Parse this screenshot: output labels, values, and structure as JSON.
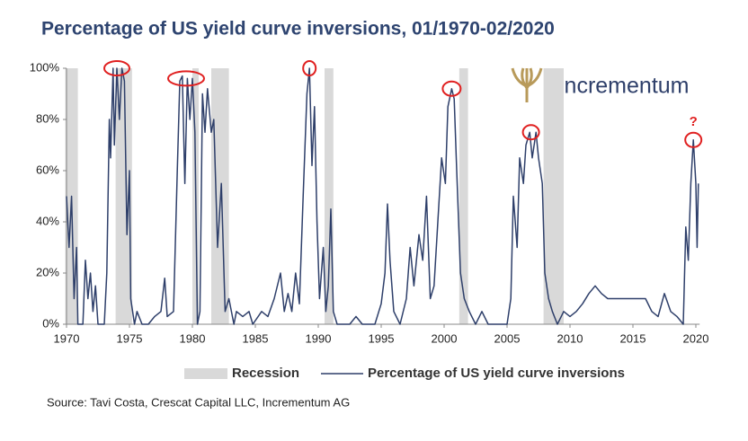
{
  "chart_data": {
    "type": "line",
    "title": "Percentage of US yield curve inversions, 01/1970-02/2020",
    "source": "Source: Tavi Costa, Crescat Capital LLC, Incrementum AG",
    "logo_text": "incrementum",
    "xlim": [
      1970,
      2020.3
    ],
    "xticks": [
      1970,
      1975,
      1980,
      1985,
      1990,
      1995,
      2000,
      2005,
      2010,
      2015,
      2020
    ],
    "ylim": [
      0,
      100
    ],
    "yticks": [
      {
        "value": 0,
        "label": "0%"
      },
      {
        "value": 20,
        "label": "20%"
      },
      {
        "value": 40,
        "label": "40%"
      },
      {
        "value": 60,
        "label": "60%"
      },
      {
        "value": 80,
        "label": "80%"
      },
      {
        "value": 100,
        "label": "100%"
      }
    ],
    "grid": false,
    "bands": {
      "name": "Recession",
      "color": "#d9d9d9",
      "ranges": [
        [
          1969.9,
          1970.9
        ],
        [
          1973.9,
          1975.2
        ],
        [
          1980.0,
          1980.5
        ],
        [
          1981.5,
          1982.9
        ],
        [
          1990.5,
          1991.2
        ],
        [
          2001.2,
          2001.9
        ],
        [
          2007.9,
          2009.5
        ]
      ]
    },
    "series": [
      {
        "name": "Percentage of US yield curve inversions",
        "color": "#2e3f6a",
        "x": [
          1970.0,
          1970.2,
          1970.4,
          1970.6,
          1970.8,
          1970.9,
          1971.3,
          1971.5,
          1971.7,
          1971.9,
          1972.1,
          1972.3,
          1972.5,
          1973.0,
          1973.2,
          1973.4,
          1973.5,
          1973.7,
          1973.8,
          1974.0,
          1974.2,
          1974.4,
          1974.6,
          1974.8,
          1975.0,
          1975.1,
          1975.4,
          1975.6,
          1976.0,
          1976.5,
          1977.0,
          1977.5,
          1977.8,
          1978.0,
          1978.5,
          1978.8,
          1979.0,
          1979.2,
          1979.4,
          1979.6,
          1979.8,
          1980.0,
          1980.2,
          1980.4,
          1980.6,
          1980.8,
          1981.0,
          1981.2,
          1981.5,
          1981.7,
          1982.0,
          1982.3,
          1982.6,
          1982.9,
          1983.3,
          1983.5,
          1984.0,
          1984.5,
          1984.8,
          1985.5,
          1986.0,
          1986.5,
          1987.0,
          1987.3,
          1987.6,
          1987.9,
          1988.2,
          1988.5,
          1988.8,
          1989.1,
          1989.3,
          1989.5,
          1989.7,
          1989.9,
          1990.1,
          1990.4,
          1990.6,
          1990.8,
          1991.0,
          1991.2,
          1991.5,
          1992.5,
          1993.0,
          1993.5,
          1994.5,
          1995.0,
          1995.3,
          1995.5,
          1995.7,
          1996.0,
          1996.5,
          1997.0,
          1997.3,
          1997.6,
          1998.0,
          1998.3,
          1998.6,
          1998.9,
          1999.2,
          1999.5,
          1999.8,
          2000.1,
          2000.3,
          2000.6,
          2000.8,
          2001.0,
          2001.3,
          2001.6,
          2002.0,
          2002.5,
          2003.0,
          2003.5,
          2005.0,
          2005.3,
          2005.5,
          2005.8,
          2006.0,
          2006.3,
          2006.5,
          2006.8,
          2007.0,
          2007.3,
          2007.5,
          2007.8,
          2008.0,
          2008.3,
          2008.6,
          2009.0,
          2009.5,
          2010.0,
          2010.5,
          2011.0,
          2011.5,
          2012.0,
          2012.5,
          2013.0,
          2014.0,
          2015.0,
          2016.0,
          2016.5,
          2017.0,
          2017.5,
          2018.0,
          2018.5,
          2019.0,
          2019.2,
          2019.4,
          2019.6,
          2019.8,
          2020.0,
          2020.1,
          2020.2
        ],
        "values": [
          50,
          30,
          50,
          10,
          30,
          0,
          0,
          25,
          10,
          20,
          5,
          15,
          0,
          0,
          20,
          80,
          65,
          100,
          70,
          100,
          80,
          100,
          95,
          35,
          60,
          10,
          0,
          5,
          0,
          0,
          3,
          5,
          18,
          3,
          5,
          60,
          95,
          97,
          55,
          96,
          80,
          96,
          75,
          0,
          5,
          90,
          75,
          92,
          75,
          80,
          30,
          55,
          5,
          10,
          0,
          5,
          3,
          5,
          0,
          5,
          3,
          10,
          20,
          5,
          12,
          5,
          20,
          8,
          50,
          90,
          100,
          62,
          85,
          40,
          10,
          30,
          5,
          15,
          45,
          5,
          0,
          0,
          3,
          0,
          0,
          8,
          20,
          47,
          25,
          5,
          0,
          10,
          30,
          15,
          35,
          25,
          50,
          10,
          15,
          40,
          65,
          55,
          85,
          92,
          88,
          60,
          20,
          10,
          5,
          0,
          5,
          0,
          0,
          10,
          50,
          30,
          65,
          55,
          70,
          75,
          65,
          75,
          65,
          55,
          20,
          10,
          5,
          0,
          5,
          3,
          5,
          8,
          12,
          15,
          12,
          10,
          10,
          10,
          10,
          5,
          3,
          12,
          5,
          3,
          0,
          38,
          25,
          55,
          72,
          55,
          30,
          55
        ]
      }
    ],
    "highlights": {
      "color": "#e02020",
      "x": [
        1974.0,
        1979.5,
        1989.3,
        2000.6,
        2006.9,
        2019.8
      ],
      "y": [
        100,
        96,
        100,
        92,
        75,
        72
      ]
    },
    "annotation": "?"
  }
}
